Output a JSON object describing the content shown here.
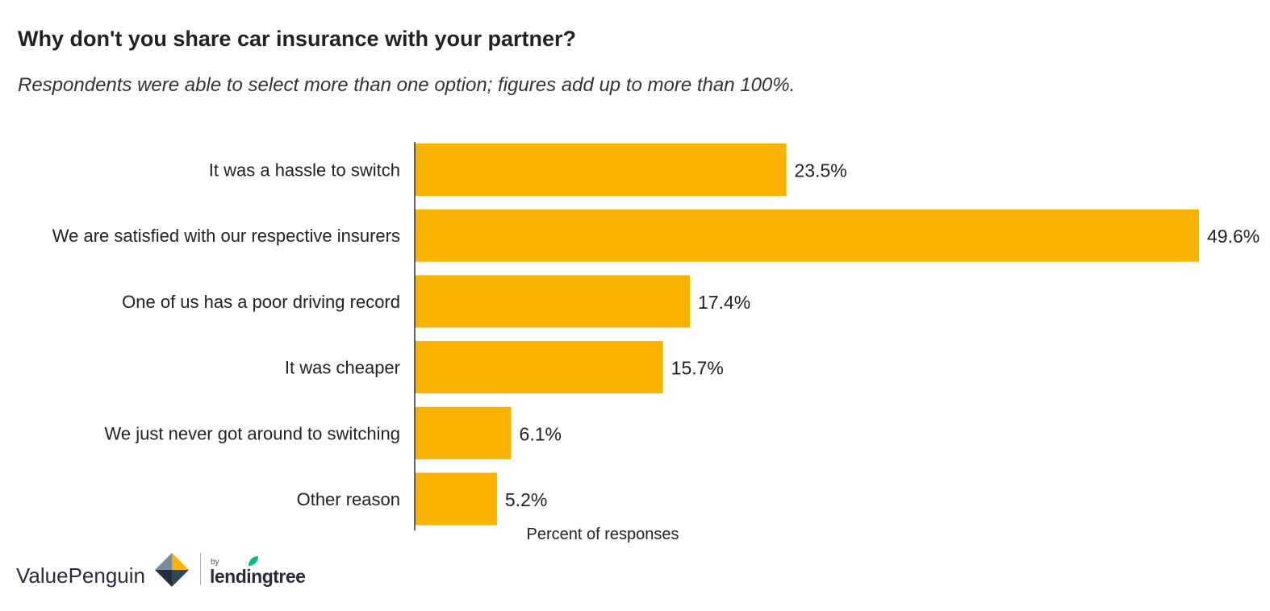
{
  "title": "Why don't you share car insurance with your partner?",
  "subtitle": "Respondents were able to select more than one option; figures add up to more than 100%.",
  "colors": {
    "bar": "#f8b200",
    "axis": "#333333",
    "text": "#222222"
  },
  "chart_data": {
    "type": "bar",
    "orientation": "horizontal",
    "title": "Why don't you share car insurance with your partner?",
    "subtitle": "Respondents were able to select more than one option; figures add up to more than 100%.",
    "categories": [
      "It was a hassle to switch",
      "We are satisfied with our respective insurers",
      "One of us has a poor driving record",
      "It was cheaper",
      "We just never got around to switching",
      "Other reason"
    ],
    "values": [
      23.5,
      49.6,
      17.4,
      15.7,
      6.1,
      5.2
    ],
    "value_labels": [
      "23.5%",
      "49.6%",
      "17.4%",
      "15.7%",
      "6.1%",
      "5.2%"
    ],
    "xlabel": "Percent of responses",
    "ylabel": "",
    "xlim": [
      0,
      49.6
    ],
    "grid": false,
    "legend": "none"
  },
  "branding": {
    "valuepenguin": "ValuePenguin",
    "by": "by",
    "lendingtree": "lendingtree"
  }
}
